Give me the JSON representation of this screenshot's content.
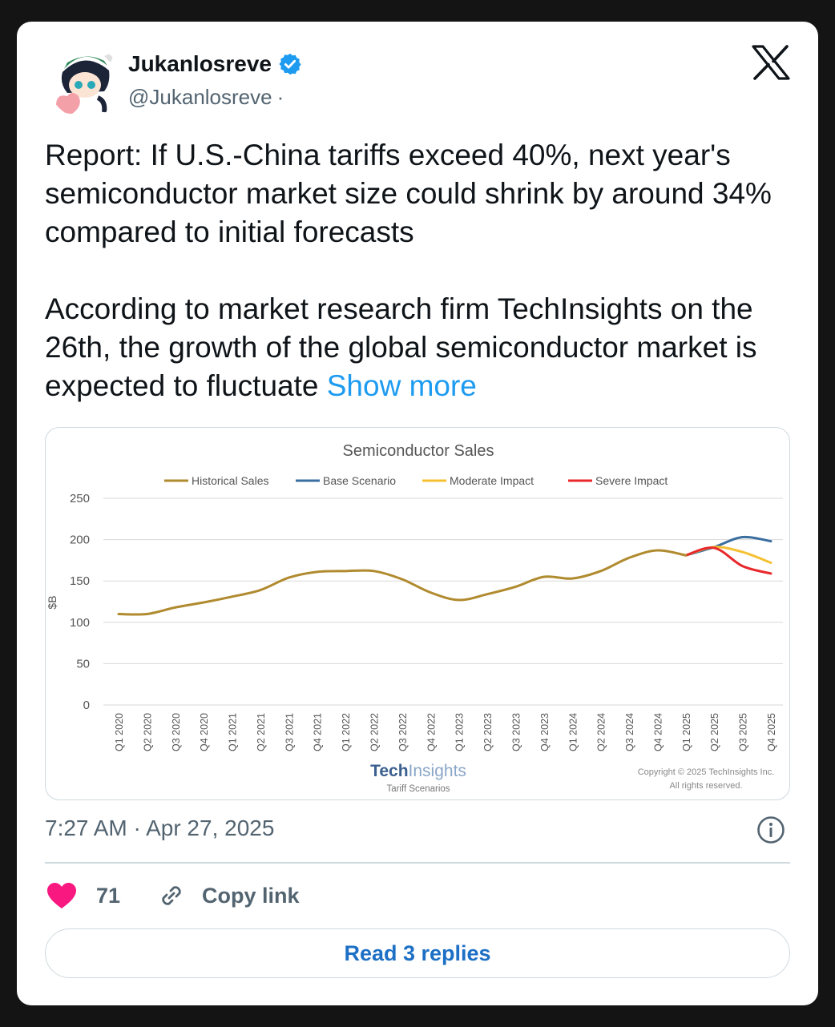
{
  "user": {
    "display_name": "Jukanlosreve",
    "handle": "@Jukanlosreve",
    "handle_separator": "·",
    "verified": true,
    "avatar_icon": "anime-character-avatar"
  },
  "platform_icon": "x-logo-icon",
  "tweet": {
    "paragraph1": "Report: If U.S.-China tariffs exceed 40%, next year's semiconductor market size could shrink by around 34% compared to initial forecasts",
    "paragraph2": "According to market research firm TechInsights on the 26th, the growth of the global semiconductor market is expected to fluctuate",
    "show_more": "Show more"
  },
  "chart_data": {
    "type": "line",
    "title": "Semiconductor Sales",
    "ylabel": "$B",
    "xlabel": "",
    "ylim": [
      0,
      250
    ],
    "yticks": [
      0,
      50,
      100,
      150,
      200,
      250
    ],
    "grid": true,
    "legend_position": "top",
    "categories": [
      "Q1 2020",
      "Q2 2020",
      "Q3 2020",
      "Q4 2020",
      "Q1 2021",
      "Q2 2021",
      "Q3 2021",
      "Q4 2021",
      "Q1 2022",
      "Q2 2022",
      "Q3 2022",
      "Q4 2022",
      "Q1 2023",
      "Q2 2023",
      "Q3 2023",
      "Q4 2023",
      "Q1 2024",
      "Q2 2024",
      "Q3 2024",
      "Q4 2024",
      "Q1 2025",
      "Q2 2025",
      "Q3 2025",
      "Q4 2025"
    ],
    "series": [
      {
        "name": "Historical Sales",
        "color": "#b08a2e",
        "values": [
          110,
          110,
          118,
          124,
          131,
          139,
          154,
          161,
          162,
          162,
          152,
          136,
          127,
          134,
          143,
          155,
          153,
          162,
          178,
          187,
          181,
          null,
          null,
          null
        ]
      },
      {
        "name": "Base Scenario",
        "color": "#3a6e9f",
        "values": [
          null,
          null,
          null,
          null,
          null,
          null,
          null,
          null,
          null,
          null,
          null,
          null,
          null,
          null,
          null,
          null,
          null,
          null,
          null,
          null,
          181,
          191,
          203,
          198
        ]
      },
      {
        "name": "Moderate Impact",
        "color": "#f5c030",
        "values": [
          null,
          null,
          null,
          null,
          null,
          null,
          null,
          null,
          null,
          null,
          null,
          null,
          null,
          null,
          null,
          null,
          null,
          null,
          null,
          null,
          181,
          191,
          185,
          172
        ]
      },
      {
        "name": "Severe Impact",
        "color": "#e8282b",
        "values": [
          null,
          null,
          null,
          null,
          null,
          null,
          null,
          null,
          null,
          null,
          null,
          null,
          null,
          null,
          null,
          null,
          null,
          null,
          null,
          null,
          181,
          190,
          168,
          159
        ]
      }
    ],
    "watermark": {
      "brand_part1": "Tech",
      "brand_part2": "Insights",
      "subtitle": "Tariff Scenarios",
      "copyright_line1": "Copyright © 2025 TechInsights Inc.",
      "copyright_line2": "All rights reserved."
    }
  },
  "meta": {
    "timestamp": "7:27 AM · Apr 27, 2025",
    "info_icon": "info-icon"
  },
  "actions": {
    "like_icon": "heart-icon",
    "like_count": "71",
    "copy_icon": "link-icon",
    "copy_label": "Copy link",
    "replies_label": "Read 3 replies"
  },
  "colors": {
    "accent": "#1d9bf0",
    "like": "#f91880",
    "text_secondary": "#536471"
  }
}
